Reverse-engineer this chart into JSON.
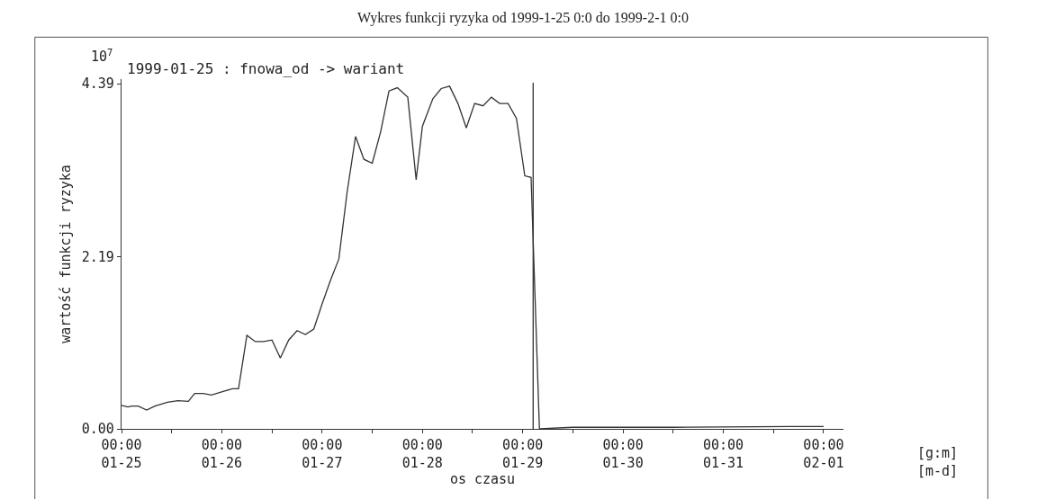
{
  "chart_data": {
    "type": "line",
    "title": "Wykres funkcji ryzyka od 1999-1-25 0:0 do 1999-2-1 0:0",
    "subtitle": "1999-01-25 : fnowa_od -> wariant",
    "xlabel": "os czasu",
    "ylabel": "wartość funkcji ryzyka",
    "annotations": [
      "10$^{7}$",
      "[g:m]\n[m-d]"
    ],
    "x": [
      "1999-01-25T00:00",
      "1999-01-25T01:30",
      "1999-01-25T02:30",
      "1999-01-25T04:00",
      "1999-01-25T06:00",
      "1999-01-25T08:00",
      "1999-01-25T11:00",
      "1999-01-25T13:30",
      "1999-01-25T16:00",
      "1999-01-25T17:30",
      "1999-01-25T19:30",
      "1999-01-25T21:30",
      "1999-01-26T00:30",
      "1999-01-26T02:30",
      "1999-01-26T04:00",
      "1999-01-26T06:00",
      "1999-01-26T08:00",
      "1999-01-26T10:00",
      "1999-01-26T12:00",
      "1999-01-26T14:00",
      "1999-01-26T16:00",
      "1999-01-26T18:00",
      "1999-01-26T20:00",
      "1999-01-26T22:00",
      "1999-01-27T00:00",
      "1999-01-27T02:00",
      "1999-01-27T04:00",
      "1999-01-27T06:00",
      "1999-01-27T08:00",
      "1999-01-27T10:00",
      "1999-01-27T12:00",
      "1999-01-27T14:00",
      "1999-01-27T16:00",
      "1999-01-27T18:00",
      "1999-01-27T20:30",
      "1999-01-27T22:30",
      "1999-01-28T00:00",
      "1999-01-28T02:30",
      "1999-01-28T04:30",
      "1999-01-28T06:30",
      "1999-01-28T08:30",
      "1999-01-28T10:30",
      "1999-01-28T12:30",
      "1999-01-28T14:30",
      "1999-01-28T16:30",
      "1999-01-28T18:30",
      "1999-01-28T20:30",
      "1999-01-28T22:30",
      "1999-01-29T00:30",
      "1999-01-29T02:00",
      "1999-01-29T04:00",
      "1999-01-29T12:00",
      "1999-01-30T12:00",
      "1999-01-31T16:00",
      "1999-02-01T00:00"
    ],
    "series": [
      {
        "color": "#333333",
        "values": [
          0.3,
          0.28,
          0.29,
          0.29,
          0.24,
          0.29,
          0.34,
          0.36,
          0.35,
          0.45,
          0.45,
          0.43,
          0.48,
          0.51,
          0.51,
          1.19,
          1.11,
          1.11,
          1.13,
          0.9,
          1.13,
          1.25,
          1.2,
          1.27,
          1.59,
          1.89,
          2.16,
          3.02,
          3.72,
          3.43,
          3.38,
          3.78,
          4.3,
          4.34,
          4.22,
          3.17,
          3.85,
          4.2,
          4.33,
          4.36,
          4.14,
          3.83,
          4.14,
          4.11,
          4.22,
          4.14,
          4.14,
          3.95,
          3.22,
          3.2,
          0.0,
          0.02,
          0.02,
          0.03,
          0.03
        ]
      }
    ],
    "xlim": [
      "1999-01-25T00:00",
      "1999-02-01T04:45"
    ],
    "ylim": [
      0,
      4.45
    ],
    "xticks": [
      {
        "value": "1999-01-25T00:00",
        "label": "00:00\n01-25"
      },
      {
        "value": "1999-01-25T12:00",
        "label": null
      },
      {
        "value": "1999-01-26T00:00",
        "label": "00:00\n01-26"
      },
      {
        "value": "1999-01-26T12:00",
        "label": null
      },
      {
        "value": "1999-01-27T00:00",
        "label": "00:00\n01-27"
      },
      {
        "value": "1999-01-27T12:00",
        "label": null
      },
      {
        "value": "1999-01-28T00:00",
        "label": "00:00\n01-28"
      },
      {
        "value": "1999-01-28T12:00",
        "label": null
      },
      {
        "value": "1999-01-29T00:00",
        "label": "00:00\n01-29"
      },
      {
        "value": "1999-01-29T12:00",
        "label": null
      },
      {
        "value": "1999-01-30T00:00",
        "label": "00:00\n01-30"
      },
      {
        "value": "1999-01-30T12:00",
        "label": null
      },
      {
        "value": "1999-01-31T00:00",
        "label": "00:00\n01-31"
      },
      {
        "value": "1999-01-31T12:00",
        "label": null
      },
      {
        "value": "1999-02-01T00:00",
        "label": "00:00\n02-01"
      }
    ],
    "yticks": [
      {
        "value": 0,
        "label": "0.00"
      },
      {
        "value": 2.19,
        "label": "2.19"
      },
      {
        "value": 4.39,
        "label": "4.39"
      }
    ],
    "ref_lines": [
      {
        "axis": "x",
        "value": "1999-01-29T02:30",
        "color": "#333333"
      }
    ],
    "marker": "none",
    "line_style": "solid"
  }
}
